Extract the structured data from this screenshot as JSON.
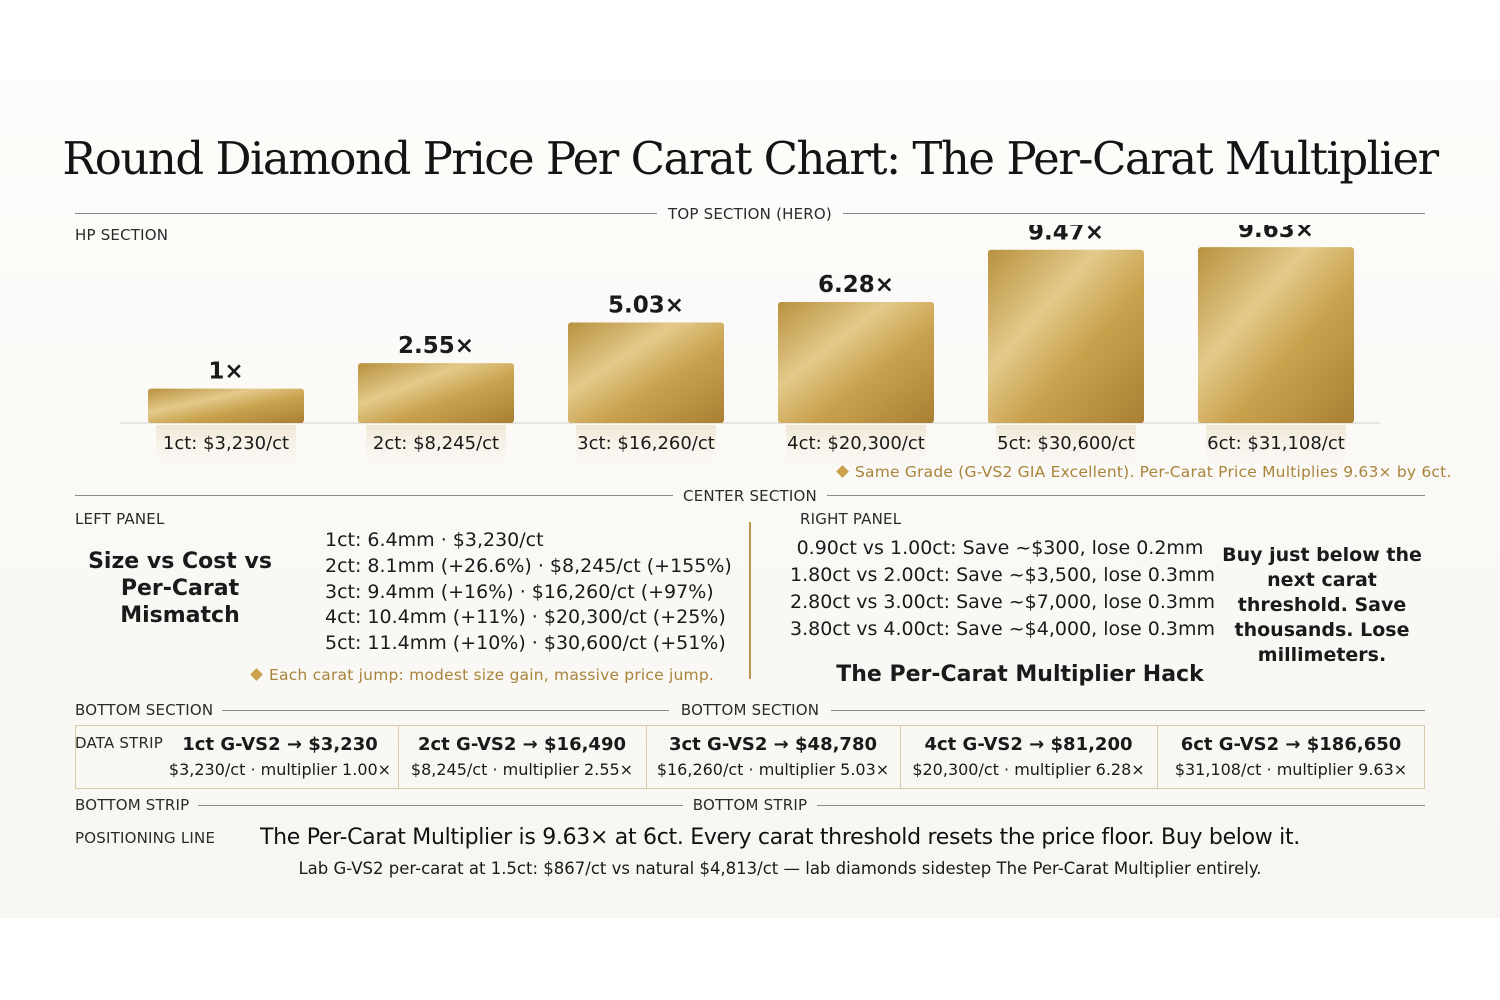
{
  "title": "Round Diamond Price Per Carat Chart: The Per-Carat Multiplier",
  "sections": {
    "top": "TOP SECTION (HERO)",
    "hp": "HP SECTION",
    "center": "CENTER SECTION",
    "left_panel": "LEFT PANEL",
    "right_panel": "RIGHT PANEL",
    "bottom_left": "BOTTOM SECTION",
    "bottom_center": "BOTTOM SECTION",
    "data_strip": "DATA STRIP",
    "bottom_strip_left": "BOTTOM STRIP",
    "bottom_strip_center": "BOTTOM STRIP",
    "positioning": "POSITIONING LINE"
  },
  "chart_data": {
    "type": "bar",
    "categories": [
      "1ct: $3,230/ct",
      "2ct: $8,245/ct",
      "3ct: $16,260/ct",
      "4ct: $20,300/ct",
      "5ct: $30,600/ct",
      "6ct: $31,108/ct"
    ],
    "value_labels": [
      "1×",
      "2.55×",
      "5.03×",
      "6.28×",
      "9.47×",
      "9.63×"
    ],
    "values": [
      1,
      2.55,
      5.03,
      6.28,
      9.47,
      9.63
    ],
    "ylim": [
      0,
      10
    ],
    "note": "Same Grade (G-VS2 GIA Excellent). Per-Carat Price Multiplies 9.63× by 6ct.",
    "bar_color": "#c9a24e"
  },
  "left_panel": {
    "heading": "Size vs Cost vs Per-Carat Mismatch",
    "lines": [
      "1ct: 6.4mm · $3,230/ct",
      "2ct: 8.1mm (+26.6%) · $8,245/ct (+155%)",
      "3ct: 9.4mm (+16%) · $16,260/ct (+97%)",
      "4ct: 10.4mm (+11%) · $20,300/ct (+25%)",
      "5ct: 11.4mm (+10%) · $30,600/ct (+51%)"
    ],
    "note": "Each carat jump: modest size gain, massive price jump."
  },
  "right_panel": {
    "lines": [
      "0.90ct vs 1.00ct: Save ~$300, lose 0.2mm",
      "1.80ct vs 2.00ct: Save ~$3,500, lose 0.3mm",
      "2.80ct vs 3.00ct: Save ~$7,000, lose 0.3mm",
      "3.80ct vs 4.00ct: Save ~$4,000, lose 0.3mm"
    ],
    "tip": "Buy just below the next carat threshold. Save thousands. Lose millimeters.",
    "hack_title": "The Per-Carat Multiplier Hack"
  },
  "data_strip": [
    {
      "main": "1ct G-VS2 → $3,230",
      "sub": "$3,230/ct · multiplier 1.00×"
    },
    {
      "main": "2ct G-VS2 → $16,490",
      "sub": "$8,245/ct · multiplier 2.55×"
    },
    {
      "main": "3ct G-VS2 → $48,780",
      "sub": "$16,260/ct · multiplier 5.03×"
    },
    {
      "main": "4ct G-VS2 → $81,200",
      "sub": "$20,300/ct · multiplier 6.28×"
    },
    {
      "main": "6ct G-VS2 → $186,650",
      "sub": "$31,108/ct · multiplier 9.63×"
    }
  ],
  "positioning": {
    "main": "The Per-Carat Multiplier is 9.63× at 6ct. Every carat threshold resets the price floor. Buy below it.",
    "sub": "Lab G-VS2 per-carat at 1.5ct: $867/ct vs natural $4,813/ct — lab diamonds sidestep The Per-Carat Multiplier entirely."
  }
}
